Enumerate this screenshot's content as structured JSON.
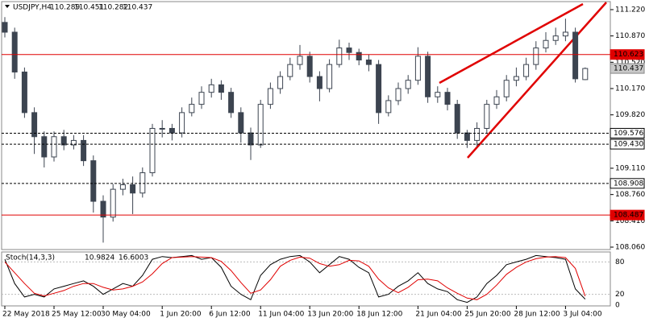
{
  "chart_data": {
    "type": "candlestick",
    "symbol": "USDJPY,H4",
    "ylim": [
      108.028,
      111.316
    ],
    "yticks": [
      {
        "value": 111.22,
        "label": "111.220"
      },
      {
        "value": 110.87,
        "label": "110.870"
      },
      {
        "value": 110.52,
        "label": "110.520"
      },
      {
        "value": 110.17,
        "label": "110.170"
      },
      {
        "value": 109.82,
        "label": "109.820"
      },
      {
        "value": 109.11,
        "label": "109.110"
      },
      {
        "value": 108.76,
        "label": "108.760"
      },
      {
        "value": 108.41,
        "label": "108.410"
      },
      {
        "value": 108.06,
        "label": "108.060"
      }
    ],
    "categories": [
      "22 May 2018",
      null,
      null,
      null,
      null,
      "25 May 12:00",
      null,
      null,
      null,
      null,
      "30 May 04:00",
      null,
      null,
      null,
      null,
      null,
      "1 Jun 20:00",
      null,
      null,
      null,
      null,
      "6 Jun 12:00",
      null,
      null,
      null,
      null,
      "11 Jun 04:00",
      null,
      null,
      null,
      null,
      "13 Jun 20:00",
      null,
      null,
      null,
      null,
      "18 Jun 12:00",
      null,
      null,
      null,
      null,
      null,
      "21 Jun 04:00",
      null,
      null,
      null,
      null,
      "25 Jun 20:00",
      null,
      null,
      null,
      null,
      "28 Jun 12:00",
      null,
      null,
      null,
      null,
      "3 Jul 04:00",
      null,
      null
    ],
    "open": [
      111.05,
      110.92,
      110.39,
      109.85,
      109.53,
      109.26,
      109.53,
      109.42,
      109.48,
      109.21,
      108.67,
      108.46,
      108.83,
      108.89,
      108.78,
      109.05,
      109.64,
      109.64,
      109.58,
      109.85,
      109.96,
      110.12,
      110.22,
      110.12,
      109.85,
      109.58,
      109.42,
      109.96,
      110.17,
      110.33,
      110.49,
      110.6,
      110.33,
      110.17,
      110.49,
      110.71,
      110.65,
      110.55,
      110.49,
      109.85,
      110.01,
      110.17,
      110.28,
      110.6,
      110.06,
      110.12,
      109.96,
      109.58,
      109.48,
      109.64,
      109.96,
      110.06,
      110.28,
      110.33,
      110.49,
      110.71,
      110.81,
      110.87,
      110.92,
      110.289
    ],
    "high": [
      111.12,
      110.98,
      110.45,
      109.92,
      109.6,
      109.6,
      109.62,
      109.55,
      109.55,
      109.28,
      108.75,
      108.9,
      108.97,
      109.0,
      109.12,
      109.7,
      109.75,
      109.7,
      109.92,
      110.05,
      110.2,
      110.3,
      110.28,
      110.18,
      109.92,
      109.65,
      110.02,
      110.25,
      110.4,
      110.58,
      110.75,
      110.66,
      110.4,
      110.56,
      110.82,
      110.78,
      110.7,
      110.62,
      110.55,
      110.08,
      110.25,
      110.35,
      110.72,
      110.66,
      110.2,
      110.18,
      110.02,
      109.62,
      109.72,
      110.02,
      110.15,
      110.35,
      110.45,
      110.58,
      110.8,
      110.92,
      110.98,
      111.1,
      110.98,
      110.451
    ],
    "low": [
      110.85,
      110.3,
      109.78,
      109.3,
      109.12,
      109.2,
      109.35,
      109.36,
      109.14,
      108.52,
      108.12,
      108.4,
      108.75,
      108.5,
      108.72,
      109.0,
      109.52,
      109.48,
      109.52,
      109.8,
      109.9,
      110.05,
      110.02,
      109.78,
      109.45,
      109.22,
      109.38,
      109.9,
      110.1,
      110.28,
      110.42,
      110.25,
      110.0,
      110.12,
      110.45,
      110.55,
      110.48,
      110.4,
      109.7,
      109.8,
      109.95,
      110.1,
      110.22,
      109.98,
      109.98,
      109.88,
      109.5,
      109.38,
      109.4,
      109.58,
      109.9,
      110.0,
      110.2,
      110.28,
      110.42,
      110.65,
      110.75,
      110.8,
      110.25,
      110.282
    ],
    "close": [
      110.92,
      110.39,
      109.85,
      109.53,
      109.26,
      109.53,
      109.42,
      109.48,
      109.21,
      108.67,
      108.46,
      108.83,
      108.89,
      108.78,
      109.05,
      109.64,
      109.64,
      109.58,
      109.85,
      109.96,
      110.12,
      110.22,
      110.12,
      109.85,
      109.58,
      109.42,
      109.96,
      110.17,
      110.33,
      110.49,
      110.6,
      110.33,
      110.17,
      110.49,
      110.71,
      110.65,
      110.55,
      110.49,
      109.85,
      110.01,
      110.17,
      110.28,
      110.6,
      110.06,
      110.12,
      109.96,
      109.58,
      109.48,
      109.64,
      109.96,
      110.06,
      110.28,
      110.33,
      110.49,
      110.71,
      110.81,
      110.87,
      110.92,
      110.3,
      110.437
    ],
    "up_color": "#ffffff",
    "down_color": "#3c4450",
    "levels": [
      {
        "value": 110.623,
        "style": "solid",
        "color": "#e00000"
      },
      {
        "value": 109.576,
        "style": "dashed",
        "color": "#000000"
      },
      {
        "value": {
          "value": 109.43,
          "label": "109.430"
        },
        "style": "dashed",
        "color": "#000000"
      },
      {
        "value": 108.908,
        "style": "dashed",
        "color": "#000000"
      },
      {
        "value": 108.487,
        "style": "solid",
        "color": "#e00000"
      }
    ],
    "indicator": {
      "type": "line",
      "name": "Stoch(14,3,3)",
      "ylim": [
        0,
        100
      ],
      "yticks": [
        80,
        20,
        0
      ],
      "series": [
        {
          "color": "#000000",
          "values": [
            85,
            40,
            15,
            20,
            15,
            30,
            35,
            40,
            45,
            35,
            20,
            30,
            40,
            35,
            55,
            85,
            90,
            88,
            90,
            92,
            85,
            88,
            70,
            35,
            20,
            10,
            55,
            75,
            85,
            90,
            92,
            80,
            60,
            75,
            90,
            85,
            70,
            60,
            15,
            20,
            35,
            45,
            60,
            40,
            30,
            25,
            10,
            5,
            15,
            40,
            55,
            75,
            80,
            85,
            92,
            90,
            88,
            85,
            30,
            10.9824
          ]
        },
        {
          "color": "#e00000",
          "values": [
            80,
            60,
            40,
            22,
            17,
            22,
            27,
            35,
            40,
            40,
            33,
            28,
            30,
            35,
            43,
            58,
            77,
            88,
            89,
            90,
            89,
            88,
            81,
            64,
            42,
            22,
            28,
            47,
            72,
            83,
            89,
            87,
            77,
            72,
            75,
            83,
            82,
            72,
            48,
            32,
            23,
            33,
            47,
            48,
            45,
            32,
            22,
            13,
            10,
            20,
            37,
            57,
            70,
            80,
            86,
            89,
            90,
            88,
            68,
            16.6003
          ]
        }
      ]
    }
  }
}
